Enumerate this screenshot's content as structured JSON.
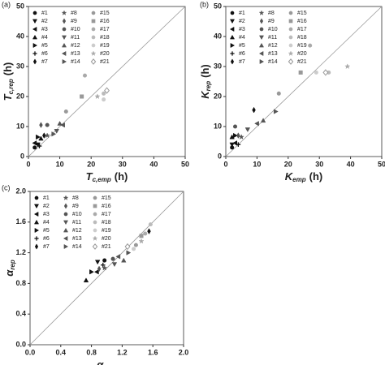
{
  "chart_data": [
    {
      "type": "scatter",
      "panel_label": "(a)",
      "xlabel_symbol": "T",
      "xlabel_subscript": "c,emp",
      "xlabel_unit": "(h)",
      "ylabel_symbol": "T",
      "ylabel_subscript": "c,rep",
      "ylabel_unit": "(h)",
      "xlim": [
        0,
        50
      ],
      "ylim": [
        0,
        50
      ],
      "xticks": [
        0,
        10,
        20,
        30,
        40,
        50
      ],
      "yticks": [
        0,
        10,
        20,
        30,
        40,
        50
      ],
      "identity_line": true,
      "series": [
        {
          "name": "#1",
          "marker": "circle",
          "color": "#111",
          "x": [
            2
          ],
          "values": [
            3
          ]
        },
        {
          "name": "#2",
          "marker": "tri-down",
          "color": "#111",
          "x": [
            3
          ],
          "values": [
            4
          ]
        },
        {
          "name": "#3",
          "marker": "tri-left",
          "color": "#111",
          "x": [
            2
          ],
          "values": [
            4.5
          ]
        },
        {
          "name": "#4",
          "marker": "tri-up",
          "color": "#111",
          "x": [
            4
          ],
          "values": [
            6
          ]
        },
        {
          "name": "#5",
          "marker": "tri-right",
          "color": "#111",
          "x": [
            3
          ],
          "values": [
            6.5
          ]
        },
        {
          "name": "#6",
          "marker": "plus",
          "color": "#111",
          "x": [
            3.5
          ],
          "values": [
            3.5
          ]
        },
        {
          "name": "#7",
          "marker": "diamond",
          "color": "#111",
          "x": [
            5
          ],
          "values": [
            7
          ]
        },
        {
          "name": "#8",
          "marker": "star",
          "color": "#555",
          "x": [
            6
          ],
          "values": [
            7
          ]
        },
        {
          "name": "#9",
          "marker": "diamond",
          "color": "#555",
          "x": [
            4
          ],
          "values": [
            10.5
          ]
        },
        {
          "name": "#10",
          "marker": "circle",
          "color": "#555",
          "x": [
            6
          ],
          "values": [
            10.5
          ]
        },
        {
          "name": "#11",
          "marker": "tri-down",
          "color": "#555",
          "x": [
            9
          ],
          "values": [
            8.5
          ]
        },
        {
          "name": "#12",
          "marker": "tri-up",
          "color": "#555",
          "x": [
            10
          ],
          "values": [
            11
          ]
        },
        {
          "name": "#13",
          "marker": "tri-left",
          "color": "#555",
          "x": [
            11
          ],
          "values": [
            10.5
          ]
        },
        {
          "name": "#14",
          "marker": "tri-right",
          "color": "#555",
          "x": [
            8
          ],
          "values": [
            7.5
          ]
        },
        {
          "name": "#15",
          "marker": "circle",
          "color": "#999",
          "x": [
            12
          ],
          "values": [
            15
          ]
        },
        {
          "name": "#16",
          "marker": "square",
          "color": "#999",
          "x": [
            17
          ],
          "values": [
            20
          ]
        },
        {
          "name": "#17",
          "marker": "circle",
          "color": "#aaa",
          "x": [
            18
          ],
          "values": [
            27
          ]
        },
        {
          "name": "#18",
          "marker": "circle",
          "color": "#bbb",
          "x": [
            24
          ],
          "values": [
            21
          ]
        },
        {
          "name": "#19",
          "marker": "circle",
          "color": "#ccc",
          "x": [
            24
          ],
          "values": [
            19
          ]
        },
        {
          "name": "#20",
          "marker": "star",
          "color": "#aaa",
          "x": [
            22
          ],
          "values": [
            20
          ]
        },
        {
          "name": "#21",
          "marker": "diamond-open",
          "color": "#999",
          "x": [
            25
          ],
          "values": [
            22
          ]
        }
      ]
    },
    {
      "type": "scatter",
      "panel_label": "(b)",
      "xlabel_symbol": "K",
      "xlabel_subscript": "emp",
      "xlabel_unit": "(h)",
      "ylabel_symbol": "K",
      "ylabel_subscript": "rep",
      "ylabel_unit": "(h)",
      "xlim": [
        0,
        50
      ],
      "ylim": [
        0,
        50
      ],
      "xticks": [
        0,
        10,
        20,
        30,
        40,
        50
      ],
      "yticks": [
        0,
        10,
        20,
        30,
        40,
        50
      ],
      "identity_line": true,
      "series": [
        {
          "name": "#1",
          "marker": "circle",
          "color": "#111",
          "x": [
            2
          ],
          "values": [
            3
          ]
        },
        {
          "name": "#2",
          "marker": "tri-down",
          "color": "#111",
          "x": [
            2
          ],
          "values": [
            4
          ]
        },
        {
          "name": "#3",
          "marker": "tri-left",
          "color": "#111",
          "x": [
            3
          ],
          "values": [
            4.5
          ]
        },
        {
          "name": "#4",
          "marker": "tri-up",
          "color": "#111",
          "x": [
            2
          ],
          "values": [
            6.5
          ]
        },
        {
          "name": "#5",
          "marker": "tri-right",
          "color": "#111",
          "x": [
            3
          ],
          "values": [
            7
          ]
        },
        {
          "name": "#6",
          "marker": "plus",
          "color": "#111",
          "x": [
            4
          ],
          "values": [
            4
          ]
        },
        {
          "name": "#7",
          "marker": "diamond",
          "color": "#111",
          "x": [
            9
          ],
          "values": [
            15.5
          ]
        },
        {
          "name": "#8",
          "marker": "star",
          "color": "#555",
          "x": [
            5
          ],
          "values": [
            6.5
          ]
        },
        {
          "name": "#9",
          "marker": "diamond",
          "color": "#555",
          "x": [
            4
          ],
          "values": [
            7
          ]
        },
        {
          "name": "#10",
          "marker": "circle",
          "color": "#555",
          "x": [
            3
          ],
          "values": [
            10
          ]
        },
        {
          "name": "#11",
          "marker": "tri-down",
          "color": "#555",
          "x": [
            7
          ],
          "values": [
            9
          ]
        },
        {
          "name": "#12",
          "marker": "tri-up",
          "color": "#555",
          "x": [
            12
          ],
          "values": [
            12
          ]
        },
        {
          "name": "#13",
          "marker": "tri-left",
          "color": "#555",
          "x": [
            10
          ],
          "values": [
            11
          ]
        },
        {
          "name": "#14",
          "marker": "tri-right",
          "color": "#555",
          "x": [
            16
          ],
          "values": [
            15
          ]
        },
        {
          "name": "#15",
          "marker": "circle",
          "color": "#999",
          "x": [
            17
          ],
          "values": [
            21
          ]
        },
        {
          "name": "#16",
          "marker": "square",
          "color": "#999",
          "x": [
            24
          ],
          "values": [
            28
          ]
        },
        {
          "name": "#17",
          "marker": "circle",
          "color": "#aaa",
          "x": [
            27
          ],
          "values": [
            37
          ]
        },
        {
          "name": "#18",
          "marker": "circle",
          "color": "#bbb",
          "x": [
            33
          ],
          "values": [
            28
          ]
        },
        {
          "name": "#19",
          "marker": "circle",
          "color": "#ccc",
          "x": [
            29
          ],
          "values": [
            28
          ]
        },
        {
          "name": "#20",
          "marker": "star",
          "color": "#aaa",
          "x": [
            39
          ],
          "values": [
            30
          ]
        },
        {
          "name": "#21",
          "marker": "diamond-open",
          "color": "#999",
          "x": [
            32
          ],
          "values": [
            28
          ]
        }
      ]
    },
    {
      "type": "scatter",
      "panel_label": "(c)",
      "xlabel_symbol": "α",
      "xlabel_subscript": "emp",
      "ylabel_symbol": "α",
      "ylabel_subscript": "rep",
      "xlim": [
        0,
        2
      ],
      "ylim": [
        0,
        2
      ],
      "xticks": [
        {
          "value": 0,
          "label": "0.0"
        },
        0.4,
        0.8,
        1.2,
        1.6,
        {
          "value": 2,
          "label": "2.0"
        }
      ],
      "yticks": [
        {
          "value": 0,
          "label": "0.0"
        },
        0.4,
        0.8,
        1.2,
        1.6,
        {
          "value": 2,
          "label": "2.0"
        }
      ],
      "identity_line": true,
      "series": [
        {
          "name": "#1",
          "marker": "circle",
          "color": "#111",
          "x": [
            0.97
          ],
          "values": [
            1.1
          ]
        },
        {
          "name": "#2",
          "marker": "tri-down",
          "color": "#111",
          "x": [
            0.88
          ],
          "values": [
            1.08
          ]
        },
        {
          "name": "#3",
          "marker": "tri-left",
          "color": "#111",
          "x": [
            0.87
          ],
          "values": [
            0.95
          ]
        },
        {
          "name": "#4",
          "marker": "tri-up",
          "color": "#111",
          "x": [
            0.73
          ],
          "values": [
            0.84
          ]
        },
        {
          "name": "#5",
          "marker": "tri-right",
          "color": "#111",
          "x": [
            0.8
          ],
          "values": [
            0.95
          ]
        },
        {
          "name": "#6",
          "marker": "plus",
          "color": "#111",
          "x": [
            0.95
          ],
          "values": [
            1.04
          ]
        },
        {
          "name": "#7",
          "marker": "diamond",
          "color": "#111",
          "x": [
            1.55
          ],
          "values": [
            1.48
          ]
        },
        {
          "name": "#8",
          "marker": "star",
          "color": "#555",
          "x": [
            0.97
          ],
          "values": [
            1
          ]
        },
        {
          "name": "#9",
          "marker": "diamond",
          "color": "#555",
          "x": [
            0.9
          ],
          "values": [
            0.99
          ]
        },
        {
          "name": "#10",
          "marker": "circle",
          "color": "#555",
          "x": [
            1.08
          ],
          "values": [
            1.12
          ]
        },
        {
          "name": "#11",
          "marker": "tri-down",
          "color": "#555",
          "x": [
            1.1
          ],
          "values": [
            1.05
          ]
        },
        {
          "name": "#12",
          "marker": "tri-up",
          "color": "#555",
          "x": [
            1.22
          ],
          "values": [
            1.1
          ]
        },
        {
          "name": "#13",
          "marker": "tri-left",
          "color": "#555",
          "x": [
            1.15
          ],
          "values": [
            1.15
          ]
        },
        {
          "name": "#14",
          "marker": "tri-right",
          "color": "#555",
          "x": [
            1.28
          ],
          "values": [
            1.2
          ]
        },
        {
          "name": "#15",
          "marker": "circle",
          "color": "#999",
          "x": [
            1.38
          ],
          "values": [
            1.3
          ]
        },
        {
          "name": "#16",
          "marker": "square",
          "color": "#999",
          "x": [
            1.45
          ],
          "values": [
            1.42
          ]
        },
        {
          "name": "#17",
          "marker": "circle",
          "color": "#aaa",
          "x": [
            1.5
          ],
          "values": [
            1.45
          ]
        },
        {
          "name": "#18",
          "marker": "circle",
          "color": "#bbb",
          "x": [
            1.57
          ],
          "values": [
            1.57
          ]
        },
        {
          "name": "#19",
          "marker": "circle",
          "color": "#ccc",
          "x": [
            1.35
          ],
          "values": [
            1.25
          ]
        },
        {
          "name": "#20",
          "marker": "star",
          "color": "#aaa",
          "x": [
            1.45
          ],
          "values": [
            1.35
          ]
        },
        {
          "name": "#21",
          "marker": "diamond-open",
          "color": "#999",
          "x": [
            1.27
          ],
          "values": [
            1.28
          ]
        }
      ]
    }
  ]
}
